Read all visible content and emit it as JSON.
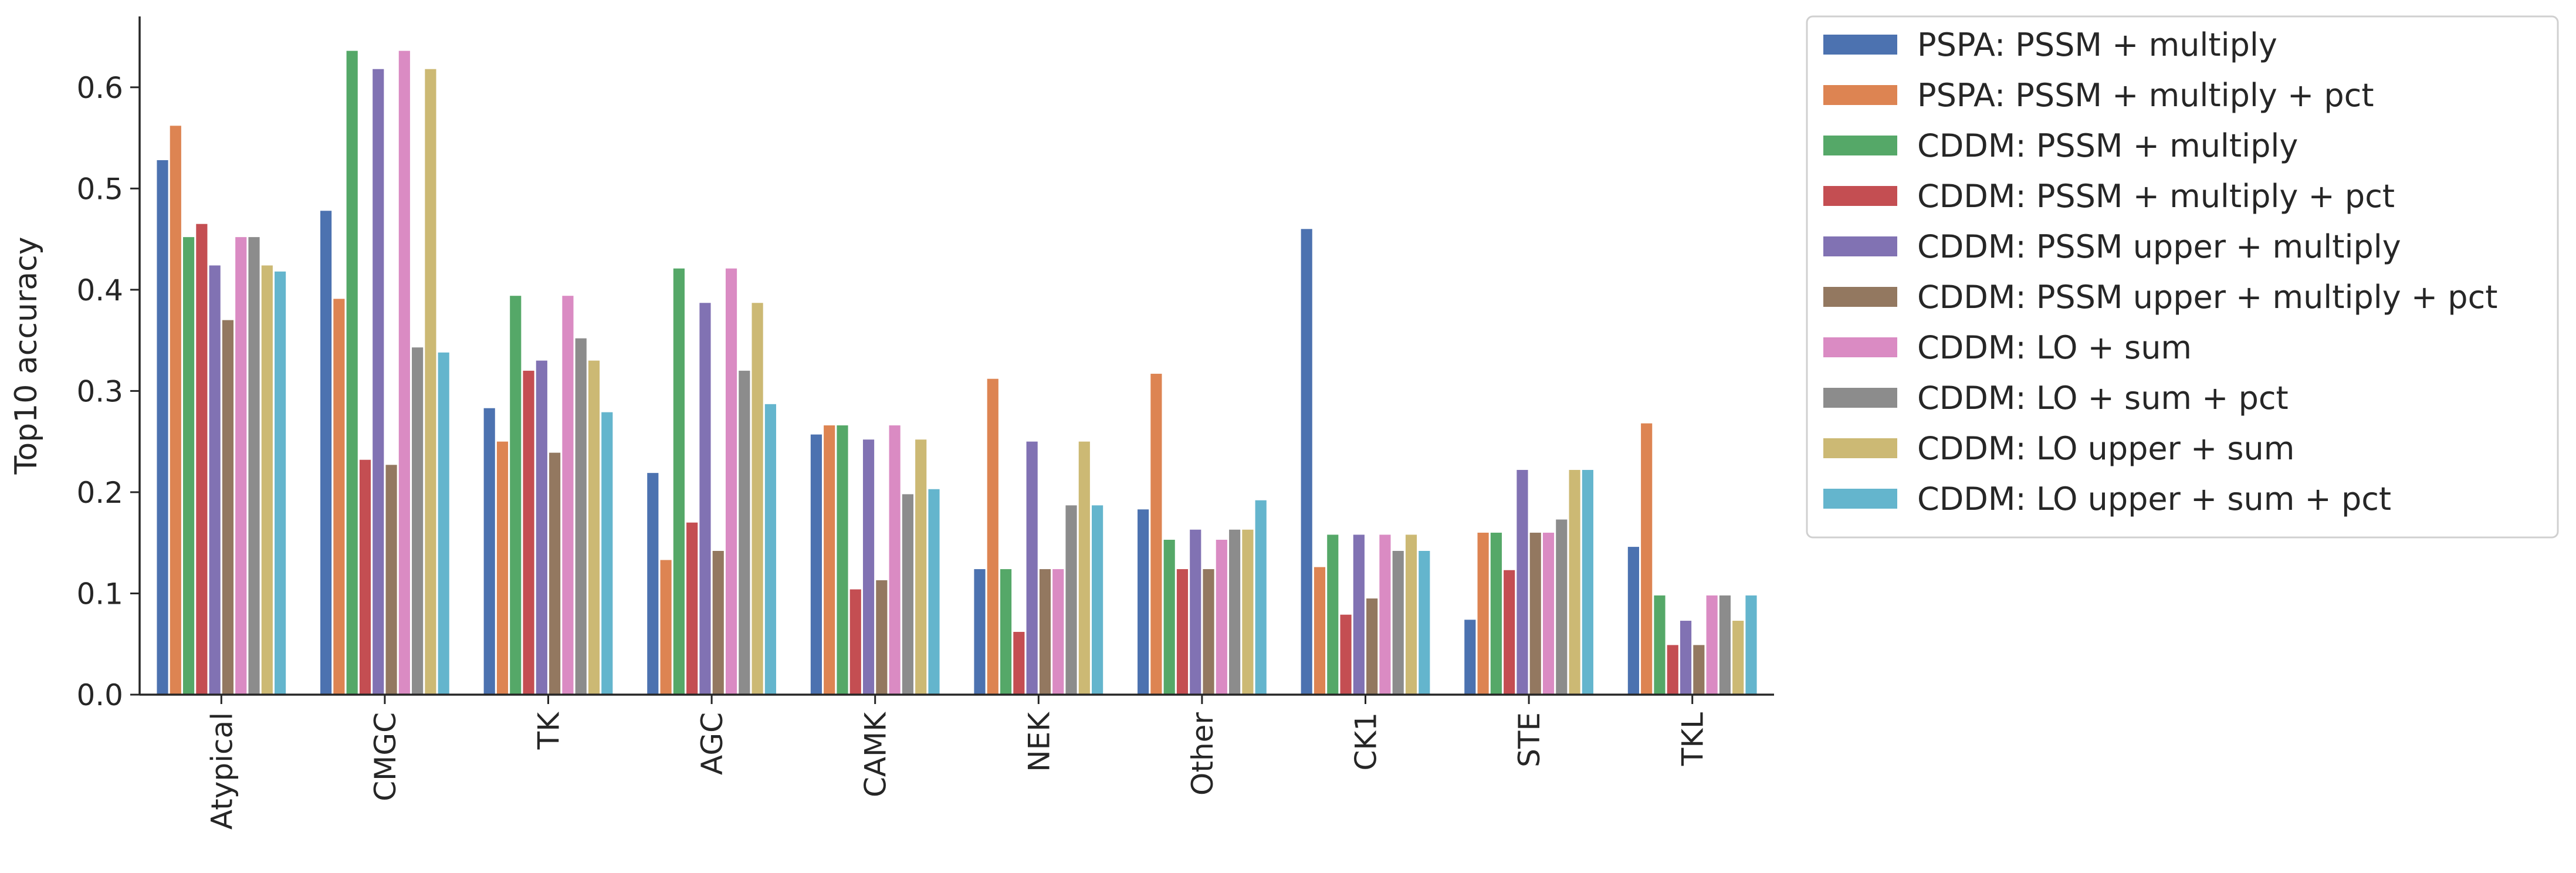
{
  "chart_data": {
    "type": "bar",
    "y_label": "Top10 accuracy",
    "categories": [
      "Atypical",
      "CMGC",
      "TK",
      "AGC",
      "CAMK",
      "NEK",
      "Other",
      "CK1",
      "STE",
      "TKL"
    ],
    "ylim": [
      0,
      0.67
    ],
    "yticks": [
      {
        "value": 0,
        "label": "0.0"
      },
      0.1,
      0.2,
      0.3,
      0.4,
      0.5,
      0.6
    ],
    "legend": "outside upper right",
    "series": [
      {
        "name": "PSPA: PSSM + multiply",
        "color": "#4c72b0",
        "values": [
          0.528,
          0.478,
          0.283,
          0.219,
          0.257,
          0.124,
          0.183,
          0.46,
          0.074,
          0.146
        ]
      },
      {
        "name": "PSPA: PSSM + multiply + pct",
        "color": "#dd8452",
        "values": [
          0.562,
          0.391,
          0.25,
          0.133,
          0.266,
          0.312,
          0.317,
          0.126,
          0.16,
          0.268
        ]
      },
      {
        "name": "CDDM: PSSM + multiply",
        "color": "#55a868",
        "values": [
          0.452,
          0.636,
          0.394,
          0.421,
          0.266,
          0.124,
          0.153,
          0.158,
          0.16,
          0.098
        ]
      },
      {
        "name": "CDDM: PSSM + multiply + pct",
        "color": "#c44e52",
        "values": [
          0.465,
          0.232,
          0.32,
          0.17,
          0.104,
          0.062,
          0.124,
          0.079,
          0.123,
          0.049
        ]
      },
      {
        "name": "CDDM: PSSM upper + multiply",
        "color": "#8172b3",
        "values": [
          0.424,
          0.618,
          0.33,
          0.387,
          0.252,
          0.25,
          0.163,
          0.158,
          0.222,
          0.073
        ]
      },
      {
        "name": "CDDM: PSSM upper + multiply + pct",
        "color": "#937860",
        "values": [
          0.37,
          0.227,
          0.239,
          0.142,
          0.113,
          0.124,
          0.124,
          0.095,
          0.16,
          0.049
        ]
      },
      {
        "name": "CDDM: LO + sum",
        "color": "#da8bc3",
        "values": [
          0.452,
          0.636,
          0.394,
          0.421,
          0.266,
          0.124,
          0.153,
          0.158,
          0.16,
          0.098
        ]
      },
      {
        "name": "CDDM: LO + sum + pct",
        "color": "#8c8c8c",
        "values": [
          0.452,
          0.343,
          0.352,
          0.32,
          0.198,
          0.187,
          0.163,
          0.142,
          0.173,
          0.098
        ]
      },
      {
        "name": "CDDM: LO upper + sum",
        "color": "#ccb974",
        "values": [
          0.424,
          0.618,
          0.33,
          0.387,
          0.252,
          0.25,
          0.163,
          0.158,
          0.222,
          0.073
        ]
      },
      {
        "name": "CDDM: LO upper + sum + pct",
        "color": "#64b5cd",
        "values": [
          0.418,
          0.338,
          0.279,
          0.287,
          0.203,
          0.187,
          0.192,
          0.142,
          0.222,
          0.098
        ]
      }
    ]
  }
}
